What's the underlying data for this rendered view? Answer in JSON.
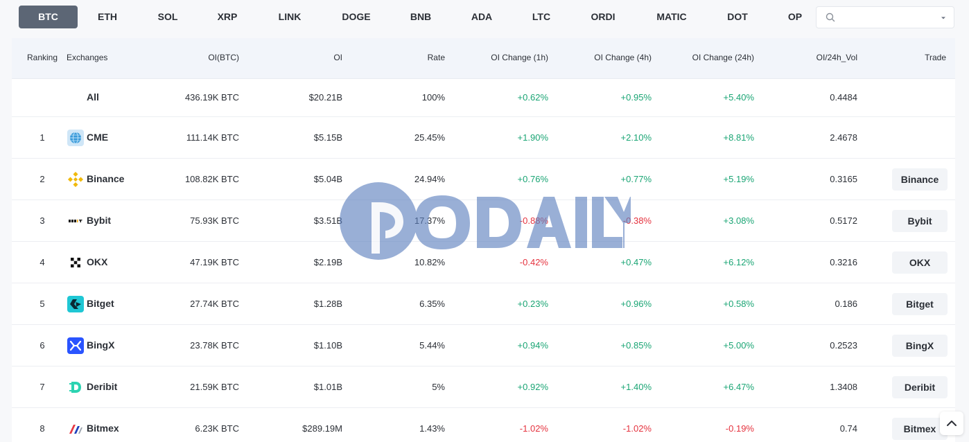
{
  "tabs": [
    {
      "label": "BTC",
      "active": true
    },
    {
      "label": "ETH"
    },
    {
      "label": "SOL"
    },
    {
      "label": "XRP"
    },
    {
      "label": "LINK"
    },
    {
      "label": "DOGE"
    },
    {
      "label": "BNB"
    },
    {
      "label": "ADA"
    },
    {
      "label": "LTC"
    },
    {
      "label": "ORDI"
    },
    {
      "label": "MATIC"
    },
    {
      "label": "DOT"
    },
    {
      "label": "OP"
    }
  ],
  "search": {
    "value": "",
    "placeholder": ""
  },
  "table": {
    "headers": {
      "ranking": "Ranking",
      "exchanges": "Exchanges",
      "oi_btc": "OI(BTC)",
      "oi": "OI",
      "rate": "Rate",
      "ch1h": "OI Change (1h)",
      "ch4h": "OI Change (4h)",
      "ch24h": "OI Change (24h)",
      "vol": "OI/24h_Vol",
      "trade": "Trade"
    },
    "all": {
      "label": "All",
      "oi_btc": "436.19K BTC",
      "oi": "$20.21B",
      "rate": "100%",
      "ch1h": "+0.62%",
      "ch4h": "+0.95%",
      "ch24h": "+5.40%",
      "vol": "0.4484"
    },
    "rows": [
      {
        "rank": "1",
        "name": "CME",
        "icon": "cme-globe-icon",
        "oi_btc": "111.14K BTC",
        "oi": "$5.15B",
        "rate": "25.45%",
        "ch1h": "+1.90%",
        "ch4h": "+2.10%",
        "ch24h": "+8.81%",
        "vol": "2.4678",
        "trade": ""
      },
      {
        "rank": "2",
        "name": "Binance",
        "icon": "binance-icon",
        "oi_btc": "108.82K BTC",
        "oi": "$5.04B",
        "rate": "24.94%",
        "ch1h": "+0.76%",
        "ch4h": "+0.77%",
        "ch24h": "+5.19%",
        "vol": "0.3165",
        "trade": "Binance"
      },
      {
        "rank": "3",
        "name": "Bybit",
        "icon": "bybit-icon",
        "oi_btc": "75.93K BTC",
        "oi": "$3.51B",
        "rate": "17.37%",
        "ch1h": "-0.88%",
        "ch4h": "-0.38%",
        "ch24h": "+3.08%",
        "vol": "0.5172",
        "trade": "Bybit"
      },
      {
        "rank": "4",
        "name": "OKX",
        "icon": "okx-icon",
        "oi_btc": "47.19K BTC",
        "oi": "$2.19B",
        "rate": "10.82%",
        "ch1h": "-0.42%",
        "ch4h": "+0.47%",
        "ch24h": "+6.12%",
        "vol": "0.3216",
        "trade": "OKX"
      },
      {
        "rank": "5",
        "name": "Bitget",
        "icon": "bitget-icon",
        "oi_btc": "27.74K BTC",
        "oi": "$1.28B",
        "rate": "6.35%",
        "ch1h": "+0.23%",
        "ch4h": "+0.96%",
        "ch24h": "+0.58%",
        "vol": "0.186",
        "trade": "Bitget"
      },
      {
        "rank": "6",
        "name": "BingX",
        "icon": "bingx-icon",
        "oi_btc": "23.78K BTC",
        "oi": "$1.10B",
        "rate": "5.44%",
        "ch1h": "+0.94%",
        "ch4h": "+0.85%",
        "ch24h": "+5.00%",
        "vol": "0.2523",
        "trade": "BingX"
      },
      {
        "rank": "7",
        "name": "Deribit",
        "icon": "deribit-icon",
        "oi_btc": "21.59K BTC",
        "oi": "$1.01B",
        "rate": "5%",
        "ch1h": "+0.92%",
        "ch4h": "+1.40%",
        "ch24h": "+6.47%",
        "vol": "1.3408",
        "trade": "Deribit"
      },
      {
        "rank": "8",
        "name": "Bitmex",
        "icon": "bitmex-icon",
        "oi_btc": "6.23K BTC",
        "oi": "$289.19M",
        "rate": "1.43%",
        "ch1h": "-1.02%",
        "ch4h": "-1.02%",
        "ch24h": "-0.19%",
        "vol": "0.74",
        "trade": "Bitmex"
      }
    ]
  },
  "watermark": {
    "text": "ODAILY"
  },
  "colors": {
    "positive": "#1aa574",
    "negative": "#e5323e",
    "active_tab": "#5c6675"
  }
}
